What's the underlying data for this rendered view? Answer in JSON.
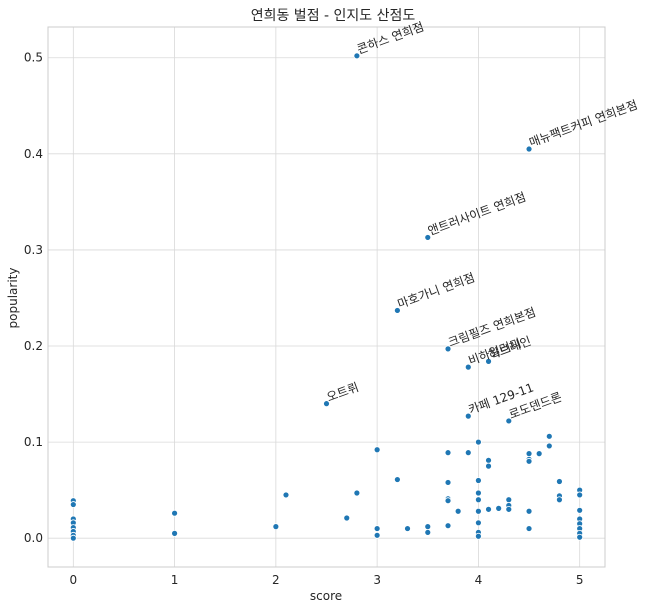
{
  "chart_data": {
    "type": "scatter",
    "title": "연희동 벌점 - 인지도 산점도",
    "xlabel": "score",
    "ylabel": "popularity",
    "xlim": [
      -0.25,
      5.25
    ],
    "ylim": [
      -0.03,
      0.532
    ],
    "xticks": [
      0,
      1,
      2,
      3,
      4,
      5
    ],
    "yticks": [
      0.0,
      0.1,
      0.2,
      0.3,
      0.4,
      0.5
    ],
    "xtick_labels": [
      "0",
      "1",
      "2",
      "3",
      "4",
      "5"
    ],
    "ytick_labels": [
      "0.0",
      "0.1",
      "0.2",
      "0.3",
      "0.4",
      "0.5"
    ],
    "grid": true,
    "color": "#1f77b4",
    "annotations": [
      {
        "text": "콘하스 연희점",
        "x": 2.8,
        "y": 0.502
      },
      {
        "text": "매뉴팩트커피 연희본점",
        "x": 4.5,
        "y": 0.405
      },
      {
        "text": "앤트러사이트 연희점",
        "x": 3.5,
        "y": 0.313
      },
      {
        "text": "마호가니 연희점",
        "x": 3.2,
        "y": 0.237
      },
      {
        "text": "크림필즈 연희본점",
        "x": 3.7,
        "y": 0.197
      },
      {
        "text": "비하일러디",
        "x": 3.9,
        "y": 0.178
      },
      {
        "text": "허브레인",
        "x": 4.1,
        "y": 0.184
      },
      {
        "text": "오트뤼",
        "x": 2.5,
        "y": 0.14
      },
      {
        "text": "카페 129-11",
        "x": 3.9,
        "y": 0.127
      },
      {
        "text": "로도덴드론",
        "x": 4.3,
        "y": 0.122
      }
    ],
    "points": [
      {
        "x": 2.8,
        "y": 0.502
      },
      {
        "x": 4.5,
        "y": 0.405
      },
      {
        "x": 3.5,
        "y": 0.313
      },
      {
        "x": 3.2,
        "y": 0.237
      },
      {
        "x": 3.7,
        "y": 0.197
      },
      {
        "x": 3.9,
        "y": 0.178
      },
      {
        "x": 4.1,
        "y": 0.184
      },
      {
        "x": 2.5,
        "y": 0.14
      },
      {
        "x": 3.9,
        "y": 0.127
      },
      {
        "x": 4.3,
        "y": 0.122
      },
      {
        "x": 0,
        "y": 0.039
      },
      {
        "x": 0,
        "y": 0.035
      },
      {
        "x": 0,
        "y": 0.02
      },
      {
        "x": 0,
        "y": 0.016
      },
      {
        "x": 0,
        "y": 0.011
      },
      {
        "x": 0,
        "y": 0.007
      },
      {
        "x": 0,
        "y": 0.003
      },
      {
        "x": 0,
        "y": 0.0
      },
      {
        "x": 1,
        "y": 0.026
      },
      {
        "x": 1,
        "y": 0.005
      },
      {
        "x": 2,
        "y": 0.012
      },
      {
        "x": 2.1,
        "y": 0.045
      },
      {
        "x": 2.7,
        "y": 0.021
      },
      {
        "x": 2.8,
        "y": 0.047
      },
      {
        "x": 3.0,
        "y": 0.092
      },
      {
        "x": 3.0,
        "y": 0.01
      },
      {
        "x": 3.0,
        "y": 0.003
      },
      {
        "x": 3.2,
        "y": 0.061
      },
      {
        "x": 3.3,
        "y": 0.01
      },
      {
        "x": 3.5,
        "y": 0.012
      },
      {
        "x": 3.5,
        "y": 0.006
      },
      {
        "x": 3.7,
        "y": 0.089
      },
      {
        "x": 3.7,
        "y": 0.058
      },
      {
        "x": 3.7,
        "y": 0.041
      },
      {
        "x": 3.7,
        "y": 0.039
      },
      {
        "x": 3.7,
        "y": 0.013
      },
      {
        "x": 3.8,
        "y": 0.028
      },
      {
        "x": 3.9,
        "y": 0.089
      },
      {
        "x": 4.0,
        "y": 0.1
      },
      {
        "x": 4.0,
        "y": 0.06
      },
      {
        "x": 4.0,
        "y": 0.047
      },
      {
        "x": 4.0,
        "y": 0.04
      },
      {
        "x": 4.0,
        "y": 0.028
      },
      {
        "x": 4.0,
        "y": 0.016
      },
      {
        "x": 4.0,
        "y": 0.006
      },
      {
        "x": 4.0,
        "y": 0.002
      },
      {
        "x": 4.1,
        "y": 0.081
      },
      {
        "x": 4.1,
        "y": 0.075
      },
      {
        "x": 4.1,
        "y": 0.03
      },
      {
        "x": 4.2,
        "y": 0.031
      },
      {
        "x": 4.3,
        "y": 0.04
      },
      {
        "x": 4.3,
        "y": 0.034
      },
      {
        "x": 4.3,
        "y": 0.03
      },
      {
        "x": 4.5,
        "y": 0.088
      },
      {
        "x": 4.5,
        "y": 0.082
      },
      {
        "x": 4.5,
        "y": 0.08
      },
      {
        "x": 4.5,
        "y": 0.028
      },
      {
        "x": 4.5,
        "y": 0.01
      },
      {
        "x": 4.6,
        "y": 0.088
      },
      {
        "x": 4.7,
        "y": 0.106
      },
      {
        "x": 4.7,
        "y": 0.096
      },
      {
        "x": 4.8,
        "y": 0.059
      },
      {
        "x": 4.8,
        "y": 0.044
      },
      {
        "x": 4.8,
        "y": 0.04
      },
      {
        "x": 5.0,
        "y": 0.05
      },
      {
        "x": 5.0,
        "y": 0.045
      },
      {
        "x": 5.0,
        "y": 0.029
      },
      {
        "x": 5.0,
        "y": 0.02
      },
      {
        "x": 5.0,
        "y": 0.015
      },
      {
        "x": 5.0,
        "y": 0.01
      },
      {
        "x": 5.0,
        "y": 0.005
      },
      {
        "x": 5.0,
        "y": 0.001
      }
    ]
  }
}
